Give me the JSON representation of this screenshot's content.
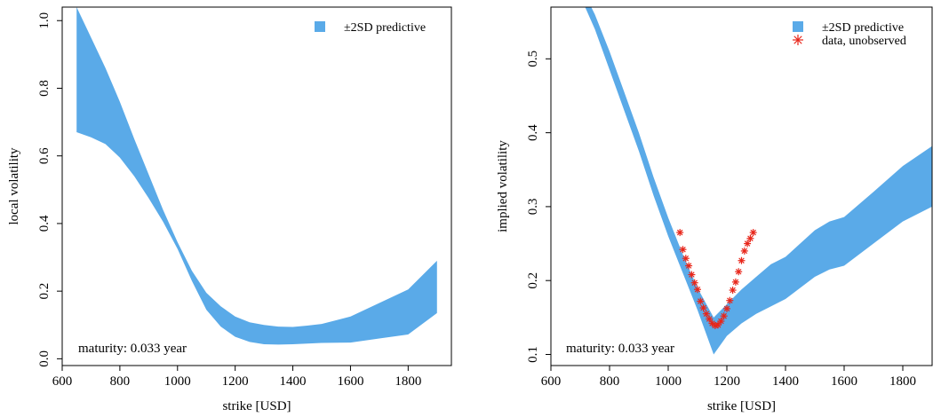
{
  "chart_data": [
    {
      "type": "area",
      "title": "",
      "xlabel": "strike [USD]",
      "ylabel": "local volatility",
      "xlim": [
        600,
        1950
      ],
      "ylim": [
        -0.02,
        1.04
      ],
      "xticks": [
        600,
        800,
        1000,
        1200,
        1400,
        1600,
        1800
      ],
      "xtick_labels": [
        "600",
        "800",
        "1000",
        "1200",
        "1400",
        "1600",
        "1800"
      ],
      "yticks": [
        0.0,
        0.2,
        0.4,
        0.6,
        0.8,
        1.0
      ],
      "ytick_labels": [
        "0.0",
        "0.2",
        "0.4",
        "0.6",
        "0.8",
        "1.0"
      ],
      "grid": false,
      "legend_position": "top-right",
      "legend": [
        {
          "label": "±2SD predictive",
          "kind": "fill",
          "color": "#5aaae8"
        }
      ],
      "annotation": "maturity: 0.033 year",
      "band": {
        "name": "±2SD predictive",
        "color": "#5aaae8",
        "x": [
          650,
          700,
          750,
          800,
          850,
          900,
          950,
          1000,
          1050,
          1100,
          1150,
          1200,
          1250,
          1300,
          1350,
          1400,
          1450,
          1500,
          1600,
          1700,
          1800,
          1900
        ],
        "lower": [
          0.67,
          0.655,
          0.635,
          0.595,
          0.54,
          0.475,
          0.405,
          0.325,
          0.23,
          0.145,
          0.095,
          0.065,
          0.05,
          0.043,
          0.042,
          0.043,
          0.045,
          0.047,
          0.048,
          0.06,
          0.072,
          0.135
        ],
        "upper": [
          1.04,
          0.95,
          0.86,
          0.76,
          0.65,
          0.545,
          0.44,
          0.345,
          0.26,
          0.195,
          0.155,
          0.125,
          0.108,
          0.1,
          0.095,
          0.094,
          0.098,
          0.103,
          0.125,
          0.165,
          0.205,
          0.29
        ]
      }
    },
    {
      "type": "area",
      "title": "",
      "xlabel": "strike [USD]",
      "ylabel": "implied volatility",
      "xlim": [
        600,
        1900
      ],
      "ylim": [
        0.085,
        0.57
      ],
      "xticks": [
        600,
        800,
        1000,
        1200,
        1400,
        1600,
        1800
      ],
      "xtick_labels": [
        "600",
        "800",
        "1000",
        "1200",
        "1400",
        "1600",
        "1800"
      ],
      "yticks": [
        0.1,
        0.2,
        0.3,
        0.4,
        0.5
      ],
      "ytick_labels": [
        "0.1",
        "0.2",
        "0.3",
        "0.4",
        "0.5"
      ],
      "grid": false,
      "legend_position": "top-right",
      "legend": [
        {
          "label": "±2SD predictive",
          "kind": "fill",
          "color": "#5aaae8"
        },
        {
          "label": "data, unobserved",
          "kind": "marker",
          "color": "#e8261a"
        }
      ],
      "annotation": "maturity: 0.033 year",
      "band": {
        "name": "±2SD predictive",
        "color": "#5aaae8",
        "x": [
          650,
          700,
          750,
          800,
          850,
          900,
          950,
          1000,
          1050,
          1100,
          1155,
          1200,
          1250,
          1300,
          1350,
          1400,
          1450,
          1500,
          1550,
          1600,
          1700,
          1800,
          1900
        ],
        "lower": [
          0.625,
          0.585,
          0.54,
          0.485,
          0.43,
          0.375,
          0.315,
          0.26,
          0.21,
          0.16,
          0.1,
          0.125,
          0.142,
          0.155,
          0.165,
          0.175,
          0.19,
          0.205,
          0.215,
          0.22,
          0.25,
          0.28,
          0.3
        ],
        "upper": [
          0.635,
          0.6,
          0.56,
          0.51,
          0.455,
          0.4,
          0.34,
          0.285,
          0.235,
          0.19,
          0.15,
          0.168,
          0.188,
          0.205,
          0.222,
          0.232,
          0.25,
          0.268,
          0.28,
          0.286,
          0.32,
          0.355,
          0.382
        ]
      },
      "points": {
        "name": "data, unobserved",
        "color": "#e8261a",
        "x": [
          1040,
          1050,
          1060,
          1070,
          1080,
          1090,
          1100,
          1110,
          1120,
          1130,
          1140,
          1150,
          1160,
          1170,
          1180,
          1190,
          1200,
          1210,
          1220,
          1230,
          1240,
          1250,
          1260,
          1270,
          1280,
          1290
        ],
        "y": [
          0.265,
          0.242,
          0.23,
          0.22,
          0.208,
          0.197,
          0.188,
          0.172,
          0.163,
          0.155,
          0.148,
          0.142,
          0.139,
          0.14,
          0.145,
          0.152,
          0.162,
          0.173,
          0.187,
          0.198,
          0.212,
          0.227,
          0.24,
          0.25,
          0.257,
          0.265
        ]
      }
    }
  ]
}
